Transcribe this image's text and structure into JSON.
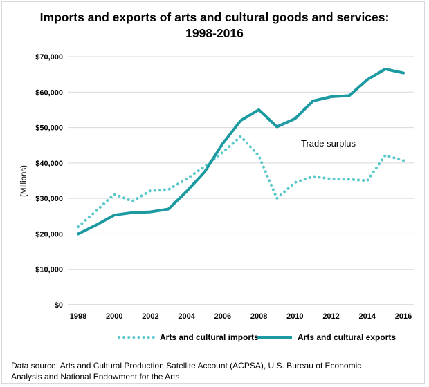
{
  "chart_data": {
    "type": "line",
    "title_line1": "Imports and exports of arts and cultural goods and services:",
    "title_line2": "1998-2016",
    "ylabel": "(Millions)",
    "xlabel": "",
    "ylim": [
      0,
      70000
    ],
    "y_ticks": [
      "$0",
      "$10,000",
      "$20,000",
      "$30,000",
      "$40,000",
      "$50,000",
      "$60,000",
      "$70,000"
    ],
    "y_tick_values": [
      0,
      10000,
      20000,
      30000,
      40000,
      50000,
      60000,
      70000
    ],
    "x_ticks": [
      "1998",
      "2000",
      "2002",
      "2004",
      "2006",
      "2008",
      "2010",
      "2012",
      "2014",
      "2016"
    ],
    "x_tick_values": [
      1998,
      2000,
      2002,
      2004,
      2006,
      2008,
      2010,
      2012,
      2014,
      2016
    ],
    "x": [
      1998,
      1999,
      2000,
      2001,
      2002,
      2003,
      2004,
      2005,
      2006,
      2007,
      2008,
      2009,
      2010,
      2011,
      2012,
      2013,
      2014,
      2015,
      2016
    ],
    "grid": true,
    "series": [
      {
        "name": "Arts and cultural imports",
        "style": "dotted",
        "color": "#5bc8cc",
        "values": [
          22000,
          26500,
          31200,
          29200,
          32200,
          32500,
          35500,
          39000,
          43000,
          47500,
          42000,
          30000,
          34500,
          36200,
          35500,
          35400,
          35000,
          42200,
          40700
        ]
      },
      {
        "name": "Arts and cultural exports",
        "style": "solid",
        "color": "#1b9aa2",
        "values": [
          20000,
          22500,
          25300,
          26000,
          26200,
          27000,
          32000,
          37500,
          45500,
          52000,
          55000,
          50200,
          52500,
          57500,
          58700,
          59000,
          63500,
          66500,
          65400
        ]
      }
    ],
    "annotation": "Trade surplus",
    "legend": [
      "Arts and cultural imports",
      "Arts and cultural exports"
    ],
    "legend_position": "bottom"
  },
  "footer": {
    "source_line1": "Data source: Arts and Cultural Production Satellite Account (ACPSA), U.S. Bureau of Economic",
    "source_line2": "Analysis and National Endowment for the Arts"
  }
}
